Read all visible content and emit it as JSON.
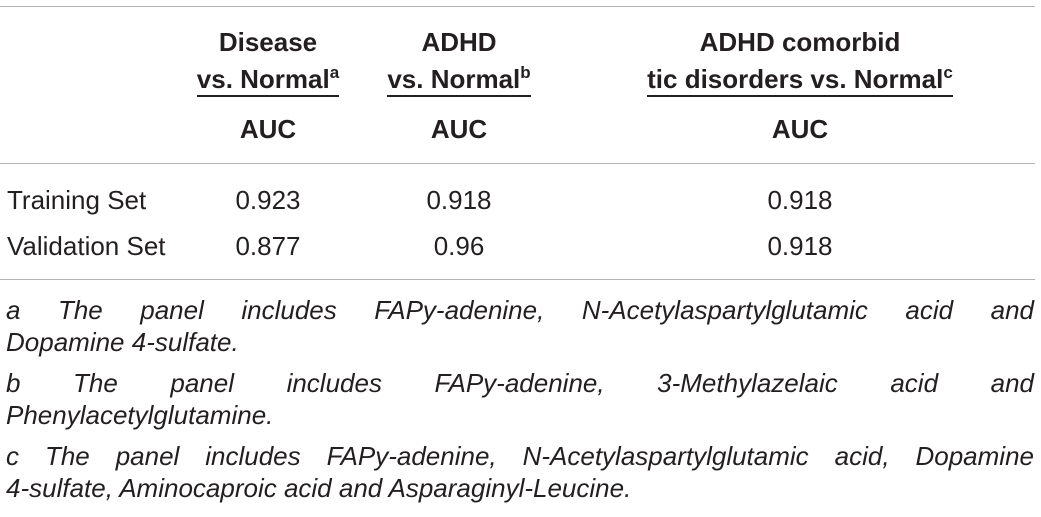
{
  "table": {
    "headers": [
      {
        "line1": "Disease",
        "line2": "vs. Normal",
        "sup": "a",
        "metric": "AUC"
      },
      {
        "line1": "ADHD",
        "line2": "vs. Normal",
        "sup": "b",
        "metric": "AUC"
      },
      {
        "line1": "ADHD comorbid",
        "line2": "tic disorders vs. Normal",
        "sup": "c",
        "metric": "AUC"
      }
    ],
    "rows": [
      {
        "label": "Training Set",
        "values": [
          "0.923",
          "0.918",
          "0.918"
        ]
      },
      {
        "label": "Validation Set",
        "values": [
          "0.877",
          "0.96",
          "0.918"
        ]
      }
    ]
  },
  "footnotes": [
    {
      "line1": "a The panel includes FAPy-adenine, N-Acetylaspartylglutamic acid and",
      "line2": "Dopamine 4-sulfate."
    },
    {
      "line1": "b The panel includes FAPy-adenine, 3-Methylazelaic acid and",
      "line2": "Phenylacetylglutamine."
    },
    {
      "line1": "c The panel includes FAPy-adenine, N-Acetylaspartylglutamic acid, Dopamine",
      "line2": "4-sulfate, Aminocaproic acid and Asparaginyl-Leucine."
    }
  ]
}
